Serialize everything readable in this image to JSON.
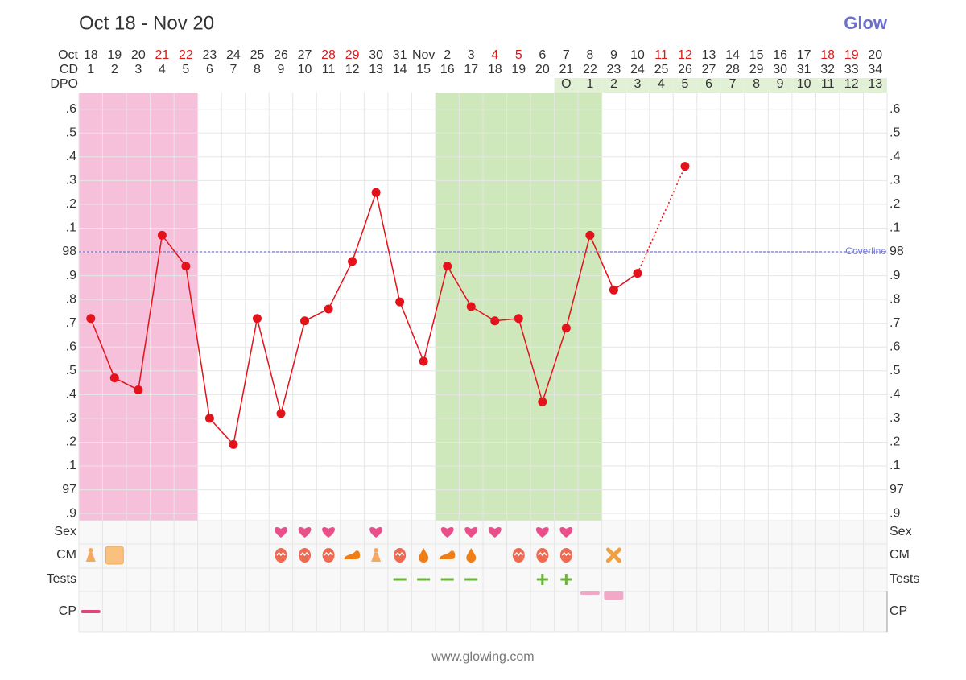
{
  "chart_data": {
    "type": "line",
    "title": "Oct 18 - Nov 20",
    "logo": "Glow",
    "footer": "www.glowing.com",
    "month_label": "Oct",
    "cd_label": "CD",
    "dpo_label": "DPO",
    "dates": [
      {
        "label": "18",
        "weekend": false
      },
      {
        "label": "19",
        "weekend": false
      },
      {
        "label": "20",
        "weekend": false
      },
      {
        "label": "21",
        "weekend": true
      },
      {
        "label": "22",
        "weekend": true
      },
      {
        "label": "23",
        "weekend": false
      },
      {
        "label": "24",
        "weekend": false
      },
      {
        "label": "25",
        "weekend": false
      },
      {
        "label": "26",
        "weekend": false
      },
      {
        "label": "27",
        "weekend": false
      },
      {
        "label": "28",
        "weekend": true
      },
      {
        "label": "29",
        "weekend": true
      },
      {
        "label": "30",
        "weekend": false
      },
      {
        "label": "31",
        "weekend": false
      },
      {
        "label": "Nov",
        "weekend": false
      },
      {
        "label": "2",
        "weekend": false
      },
      {
        "label": "3",
        "weekend": false
      },
      {
        "label": "4",
        "weekend": true
      },
      {
        "label": "5",
        "weekend": true
      },
      {
        "label": "6",
        "weekend": false
      },
      {
        "label": "7",
        "weekend": false
      },
      {
        "label": "8",
        "weekend": false
      },
      {
        "label": "9",
        "weekend": false
      },
      {
        "label": "10",
        "weekend": false
      },
      {
        "label": "11",
        "weekend": true
      },
      {
        "label": "12",
        "weekend": true
      },
      {
        "label": "13",
        "weekend": false
      },
      {
        "label": "14",
        "weekend": false
      },
      {
        "label": "15",
        "weekend": false
      },
      {
        "label": "16",
        "weekend": false
      },
      {
        "label": "17",
        "weekend": false
      },
      {
        "label": "18",
        "weekend": true
      },
      {
        "label": "19",
        "weekend": true
      },
      {
        "label": "20",
        "weekend": false
      }
    ],
    "cd": [
      1,
      2,
      3,
      4,
      5,
      6,
      7,
      8,
      9,
      10,
      11,
      12,
      13,
      14,
      15,
      16,
      17,
      18,
      19,
      20,
      21,
      22,
      23,
      24,
      25,
      26,
      27,
      28,
      29,
      30,
      31,
      32,
      33,
      34
    ],
    "dpo": [
      null,
      null,
      null,
      null,
      null,
      null,
      null,
      null,
      null,
      null,
      null,
      null,
      null,
      null,
      null,
      null,
      null,
      null,
      null,
      null,
      "O",
      1,
      2,
      3,
      4,
      5,
      6,
      7,
      8,
      9,
      10,
      11,
      12,
      13
    ],
    "dpo_color": "#e2f1d6",
    "weekend_color": "#e01818",
    "values": [
      97.72,
      97.47,
      97.42,
      98.07,
      97.94,
      97.3,
      97.19,
      97.72,
      97.32,
      97.71,
      97.76,
      97.96,
      98.25,
      97.79,
      97.54,
      97.94,
      97.77,
      97.71,
      97.72,
      97.37,
      97.68,
      98.07,
      97.84,
      97.91,
      null,
      98.36,
      null,
      null,
      null,
      null,
      null,
      null,
      null,
      null
    ],
    "color": "#e3121b",
    "ylim": [
      96.87,
      98.67
    ],
    "yticks": [
      {
        "value": 98.6,
        "label": ".6"
      },
      {
        "value": 98.5,
        "label": ".5"
      },
      {
        "value": 98.4,
        "label": ".4"
      },
      {
        "value": 98.3,
        "label": ".3"
      },
      {
        "value": 98.2,
        "label": ".2"
      },
      {
        "value": 98.1,
        "label": ".1"
      },
      98,
      {
        "value": 97.9,
        "label": ".9"
      },
      {
        "value": 97.8,
        "label": ".8"
      },
      {
        "value": 97.7,
        "label": ".7"
      },
      {
        "value": 97.6,
        "label": ".6"
      },
      {
        "value": 97.5,
        "label": ".5"
      },
      {
        "value": 97.4,
        "label": ".4"
      },
      {
        "value": 97.3,
        "label": ".3"
      },
      {
        "value": 97.2,
        "label": ".2"
      },
      {
        "value": 97.1,
        "label": ".1"
      },
      97,
      {
        "value": 96.9,
        "label": ".9"
      }
    ],
    "coverline": {
      "value": 98,
      "label": "Coverline",
      "color": "#7378d8"
    },
    "shading": [
      {
        "from": 0,
        "to": 4,
        "color": "#f7c0da"
      },
      {
        "from": 15,
        "to": 21,
        "color": "#cfe8bb"
      }
    ],
    "grid": true,
    "rows": [
      {
        "label": "Sex",
        "marks": [
          null,
          null,
          null,
          null,
          null,
          null,
          null,
          null,
          "heart",
          "heart",
          "heart",
          null,
          "heart",
          null,
          null,
          "heart",
          "heart",
          "heart",
          null,
          "heart",
          "heart",
          null,
          null,
          null,
          null,
          null,
          null,
          null,
          null,
          null,
          null,
          null,
          null,
          null
        ]
      },
      {
        "label": "CM",
        "marks": [
          "pin",
          "square",
          null,
          null,
          null,
          null,
          null,
          null,
          "egg",
          "egg",
          "egg",
          "cream",
          "pin",
          "egg",
          "drop",
          "cream",
          "drop",
          null,
          "egg",
          "egg",
          "egg",
          null,
          "cross",
          null,
          null,
          null,
          null,
          null,
          null,
          null,
          null,
          null,
          null,
          null
        ]
      },
      {
        "label": "Tests",
        "marks": [
          null,
          null,
          null,
          null,
          null,
          null,
          null,
          null,
          null,
          null,
          null,
          null,
          null,
          "minus",
          "minus",
          "minus",
          "minus",
          null,
          null,
          "plus",
          "plus",
          null,
          null,
          null,
          null,
          null,
          null,
          null,
          null,
          null,
          null,
          null,
          null,
          null
        ]
      },
      {
        "label": "CP",
        "marks": [
          "low",
          null,
          null,
          null,
          null,
          null,
          null,
          null,
          null,
          null,
          null,
          null,
          null,
          null,
          null,
          null,
          null,
          null,
          null,
          null,
          null,
          "high-thin",
          "high",
          null,
          null,
          null,
          null,
          null,
          null,
          null,
          null,
          null,
          null,
          null
        ]
      }
    ]
  }
}
